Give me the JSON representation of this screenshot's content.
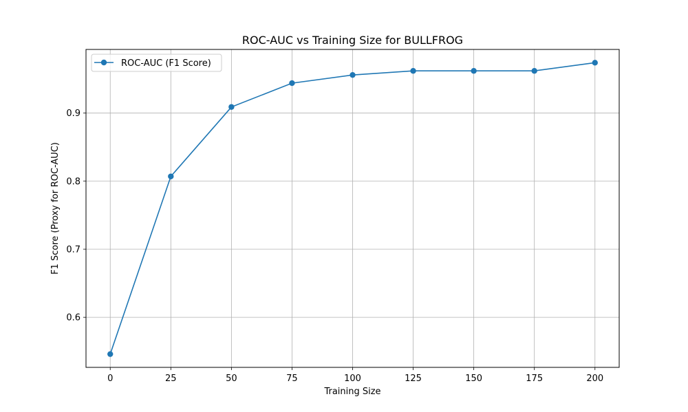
{
  "chart_data": {
    "type": "line",
    "title": "ROC-AUC vs Training Size for BULLFROG",
    "xlabel": "Training Size",
    "ylabel": "F1 Score (Proxy for ROC-AUC)",
    "x": [
      0,
      25,
      50,
      75,
      100,
      125,
      150,
      175,
      200
    ],
    "series": [
      {
        "name": "ROC-AUC (F1 Score)",
        "color": "#1f77b4",
        "marker": "circle",
        "values": [
          0.546,
          0.807,
          0.909,
          0.944,
          0.956,
          0.962,
          0.962,
          0.962,
          0.974
        ]
      }
    ],
    "xlim": [
      -10,
      210
    ],
    "ylim": [
      0.5265,
      0.9935
    ],
    "xticks": [
      0,
      25,
      50,
      75,
      100,
      125,
      150,
      175,
      200
    ],
    "yticks": [
      0.6,
      0.7,
      0.8,
      0.9
    ],
    "xtick_labels": [
      "0",
      "25",
      "50",
      "75",
      "100",
      "125",
      "150",
      "175",
      "200"
    ],
    "ytick_labels": [
      "0.6",
      "0.7",
      "0.8",
      "0.9"
    ],
    "grid": true,
    "legend_position": "top-left"
  }
}
